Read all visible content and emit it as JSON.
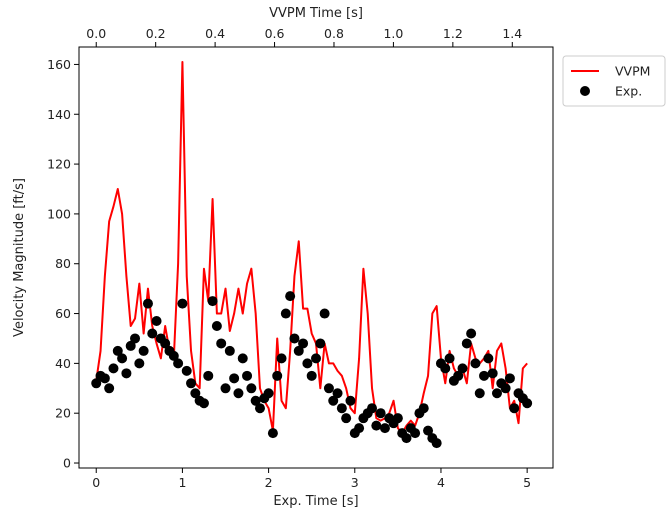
{
  "chart_data": {
    "type": "line",
    "xlabel": "Exp. Time [s]",
    "ylabel": "Velocity Magnitude [ft/s]",
    "top_xlabel": "VVPM Time [s]",
    "xlim": [
      -0.2,
      5.3
    ],
    "ylim": [
      -2,
      167
    ],
    "top_xlim": [
      -0.058,
      1.537
    ],
    "xticks": [
      0,
      1,
      2,
      3,
      4,
      5
    ],
    "xtick_labels": [
      "0",
      "1",
      "2",
      "3",
      "4",
      "5"
    ],
    "yticks": [
      0,
      20,
      40,
      60,
      80,
      100,
      120,
      140,
      160
    ],
    "ytick_labels": [
      "0",
      "20",
      "40",
      "60",
      "80",
      "100",
      "120",
      "140",
      "160"
    ],
    "top_xticks": [
      0.0,
      0.2,
      0.4,
      0.6,
      0.8,
      1.0,
      1.2,
      1.4
    ],
    "top_xtick_labels": [
      "0.0",
      "0.2",
      "0.4",
      "0.6",
      "0.8",
      "1.0",
      "1.2",
      "1.4"
    ],
    "legend_position": "outside-top-right",
    "grid": false,
    "series": [
      {
        "name": "VVPM",
        "kind": "line",
        "color": "#ff0000",
        "x": [
          0.0,
          0.05,
          0.1,
          0.15,
          0.2,
          0.25,
          0.3,
          0.35,
          0.4,
          0.45,
          0.5,
          0.55,
          0.6,
          0.65,
          0.7,
          0.75,
          0.8,
          0.85,
          0.9,
          0.95,
          1.0,
          1.05,
          1.1,
          1.15,
          1.2,
          1.25,
          1.3,
          1.35,
          1.4,
          1.45,
          1.5,
          1.55,
          1.6,
          1.65,
          1.7,
          1.75,
          1.8,
          1.85,
          1.9,
          1.95,
          2.0,
          2.05,
          2.1,
          2.15,
          2.2,
          2.25,
          2.3,
          2.35,
          2.4,
          2.45,
          2.5,
          2.55,
          2.6,
          2.65,
          2.7,
          2.75,
          2.8,
          2.85,
          2.9,
          2.95,
          3.0,
          3.05,
          3.1,
          3.15,
          3.2,
          3.25,
          3.3,
          3.35,
          3.4,
          3.45,
          3.5,
          3.55,
          3.6,
          3.65,
          3.7,
          3.75,
          3.8,
          3.85,
          3.9,
          3.95,
          4.0,
          4.05,
          4.1,
          4.15,
          4.2,
          4.25,
          4.3,
          4.35,
          4.4,
          4.45,
          4.5,
          4.55,
          4.6,
          4.65,
          4.7,
          4.75,
          4.8,
          4.85,
          4.9,
          4.95,
          5.0
        ],
        "y": [
          33,
          45,
          75,
          97,
          103,
          110,
          100,
          75,
          55,
          58,
          72,
          52,
          70,
          55,
          48,
          42,
          55,
          45,
          42,
          80,
          161,
          75,
          45,
          32,
          30,
          78,
          65,
          106,
          60,
          60,
          70,
          53,
          60,
          70,
          60,
          72,
          78,
          60,
          30,
          25,
          22,
          13,
          50,
          25,
          22,
          45,
          75,
          89,
          62,
          62,
          52,
          48,
          30,
          48,
          40,
          40,
          37,
          35,
          30,
          22,
          20,
          42,
          78,
          60,
          30,
          18,
          17,
          18,
          20,
          25,
          14,
          12,
          15,
          17,
          15,
          20,
          28,
          35,
          60,
          63,
          42,
          32,
          45,
          38,
          35,
          38,
          32,
          48,
          42,
          40,
          42,
          45,
          30,
          45,
          48,
          38,
          22,
          25,
          16,
          38,
          40
        ]
      },
      {
        "name": "Exp.",
        "kind": "scatter",
        "color": "#000000",
        "x": [
          0.0,
          0.05,
          0.1,
          0.15,
          0.2,
          0.25,
          0.3,
          0.35,
          0.4,
          0.45,
          0.5,
          0.55,
          0.6,
          0.65,
          0.7,
          0.75,
          0.8,
          0.85,
          0.9,
          0.95,
          1.0,
          1.05,
          1.1,
          1.15,
          1.2,
          1.25,
          1.3,
          1.35,
          1.4,
          1.45,
          1.5,
          1.55,
          1.6,
          1.65,
          1.7,
          1.75,
          1.8,
          1.85,
          1.9,
          1.95,
          2.0,
          2.05,
          2.1,
          2.15,
          2.2,
          2.25,
          2.3,
          2.35,
          2.4,
          2.45,
          2.5,
          2.55,
          2.6,
          2.65,
          2.7,
          2.75,
          2.8,
          2.85,
          2.9,
          2.95,
          3.0,
          3.05,
          3.1,
          3.15,
          3.2,
          3.25,
          3.3,
          3.35,
          3.4,
          3.45,
          3.5,
          3.55,
          3.6,
          3.65,
          3.7,
          3.75,
          3.8,
          3.85,
          3.9,
          3.95,
          4.0,
          4.05,
          4.1,
          4.15,
          4.2,
          4.25,
          4.3,
          4.35,
          4.4,
          4.45,
          4.5,
          4.55,
          4.6,
          4.65,
          4.7,
          4.75,
          4.8,
          4.85,
          4.9,
          4.95,
          5.0
        ],
        "y": [
          32,
          35,
          34,
          30,
          38,
          45,
          42,
          36,
          47,
          50,
          40,
          45,
          64,
          52,
          57,
          50,
          48,
          45,
          43,
          40,
          64,
          37,
          32,
          28,
          25,
          24,
          35,
          65,
          55,
          48,
          30,
          45,
          34,
          28,
          42,
          35,
          30,
          25,
          22,
          26,
          28,
          12,
          35,
          42,
          60,
          67,
          50,
          45,
          48,
          40,
          35,
          42,
          48,
          60,
          30,
          25,
          28,
          22,
          18,
          25,
          12,
          14,
          18,
          20,
          22,
          15,
          20,
          14,
          18,
          16,
          18,
          12,
          10,
          14,
          12,
          20,
          22,
          13,
          10,
          8,
          40,
          38,
          42,
          33,
          35,
          38,
          48,
          52,
          40,
          28,
          35,
          42,
          36,
          28,
          32,
          30,
          34,
          22,
          28,
          26,
          24
        ]
      }
    ]
  }
}
